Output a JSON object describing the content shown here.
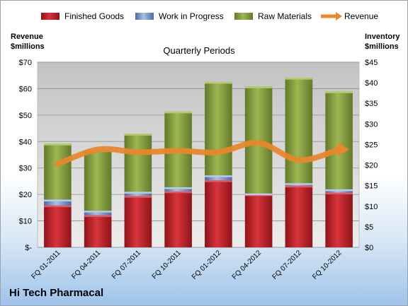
{
  "company": "Hi Tech Pharmacal",
  "chart_data": {
    "type": "bar",
    "subtitle": "Quarterly Periods",
    "left_axis_label": [
      "Revenue",
      "$millions"
    ],
    "right_axis_label": [
      "Inventory",
      "$millions"
    ],
    "categories": [
      "FQ 01-2011",
      "FQ 04-2011",
      "FQ 07-2011",
      "FQ 10-2011",
      "FQ 01-2012",
      "FQ 04-2012",
      "FQ 07-2012",
      "FQ 10-2012"
    ],
    "left_ticks": [
      "$-",
      "$10",
      "$20",
      "$30",
      "$40",
      "$50",
      "$60",
      "$70"
    ],
    "right_ticks": [
      "$0",
      "$5",
      "$10",
      "$15",
      "$20",
      "$25",
      "$30",
      "$35",
      "$40",
      "$45"
    ],
    "ylim_left": [
      0,
      70
    ],
    "ylim_right": [
      0,
      45
    ],
    "stacked": true,
    "series": [
      {
        "name": "Finished Goods",
        "axis": "right",
        "color": "#c0242b",
        "values": [
          10.2,
          7.8,
          12.5,
          13.6,
          16.3,
          12.9,
          15.0,
          13.3
        ]
      },
      {
        "name": "Work in Progress",
        "axis": "right",
        "color": "#6f8fc4",
        "values": [
          1.4,
          1.1,
          1.0,
          1.0,
          1.2,
          0.2,
          0.6,
          0.8
        ]
      },
      {
        "name": "Raw Materials",
        "axis": "right",
        "color": "#8ba63d",
        "values": [
          13.6,
          14.7,
          14.1,
          18.4,
          22.7,
          26.0,
          25.6,
          23.8
        ]
      },
      {
        "name": "Revenue",
        "axis": "left",
        "type": "line",
        "color": "#e8872b",
        "values": [
          31.5,
          37,
          36,
          36.5,
          36,
          39.5,
          33,
          37
        ]
      }
    ],
    "grid": true,
    "legend_position": "top"
  }
}
